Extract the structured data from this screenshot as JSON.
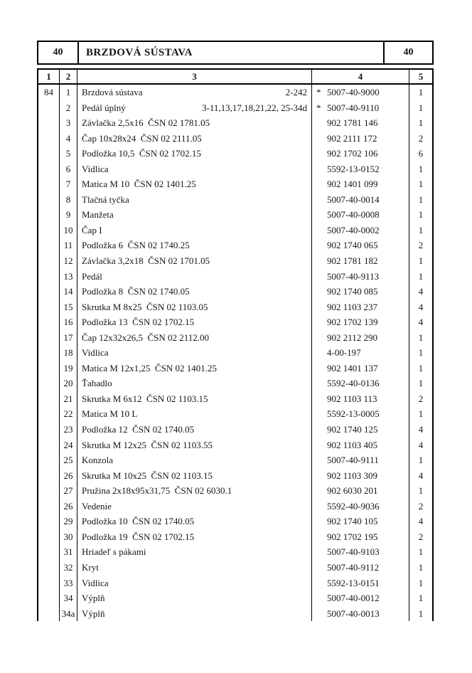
{
  "header": {
    "left_code": "40",
    "title": "BRZDOVÁ SÚSTAVA",
    "right_code": "40"
  },
  "columns": [
    "1",
    "2",
    "3",
    "4",
    "5"
  ],
  "group_ref": "84",
  "rows": [
    {
      "pos": "1",
      "name": "Brzdová sústava",
      "ref": "2-242",
      "star": "*",
      "number": "5007-40-9000",
      "qty": "1"
    },
    {
      "pos": "2",
      "name": "Pedál úplný",
      "ref": "3-11,13,17,18,21,22, 25-34d",
      "star": "*",
      "number": "5007-40-9110",
      "qty": "1"
    },
    {
      "pos": "3",
      "name": "Závlačka 2,5x16  ČSN 02 1781.05",
      "ref": "",
      "star": "",
      "number": "902 1781 146",
      "qty": "1"
    },
    {
      "pos": "4",
      "name": "Čap 10x28x24  ČSN 02 2111.05",
      "ref": "",
      "star": "",
      "number": "902 2111 172",
      "qty": "2"
    },
    {
      "pos": "5",
      "name": "Podložka 10,5  ČSN 02 1702.15",
      "ref": "",
      "star": "",
      "number": "902 1702 106",
      "qty": "6"
    },
    {
      "pos": "6",
      "name": "Vidlica",
      "ref": "",
      "star": "",
      "number": "5592-13-0152",
      "qty": "1"
    },
    {
      "pos": "7",
      "name": "Matica M 10  ČSN 02 1401.25",
      "ref": "",
      "star": "",
      "number": "902 1401 099",
      "qty": "1"
    },
    {
      "pos": "8",
      "name": "Tlačná tyčka",
      "ref": "",
      "star": "",
      "number": "5007-40-0014",
      "qty": "1"
    },
    {
      "pos": "9",
      "name": "Manžeta",
      "ref": "",
      "star": "",
      "number": "5007-40-0008",
      "qty": "1"
    },
    {
      "pos": "10",
      "name": "Čap I",
      "ref": "",
      "star": "",
      "number": "5007-40-0002",
      "qty": "1"
    },
    {
      "pos": "11",
      "name": "Podložka 6  ČSN 02 1740.25",
      "ref": "",
      "star": "",
      "number": "902 1740 065",
      "qty": "2"
    },
    {
      "pos": "12",
      "name": "Závlačka 3,2x18  ČSN 02 1701.05",
      "ref": "",
      "star": "",
      "number": "902 1781 182",
      "qty": "1"
    },
    {
      "pos": "13",
      "name": "Pedál",
      "ref": "",
      "star": "",
      "number": "5007-40-9113",
      "qty": "1"
    },
    {
      "pos": "14",
      "name": "Podložka 8  ČSN 02 1740.05",
      "ref": "",
      "star": "",
      "number": "902 1740 085",
      "qty": "4"
    },
    {
      "pos": "15",
      "name": "Skrutka M 8x25  ČSN 02 1103.05",
      "ref": "",
      "star": "",
      "number": "902 1103 237",
      "qty": "4"
    },
    {
      "pos": "16",
      "name": "Podložka 13  ČSN 02 1702.15",
      "ref": "",
      "star": "",
      "number": "902 1702 139",
      "qty": "4"
    },
    {
      "pos": "17",
      "name": "Čap 12x32x26,5  ČSN 02 2112.00",
      "ref": "",
      "star": "",
      "number": "902 2112 290",
      "qty": "1"
    },
    {
      "pos": "18",
      "name": "Vidlica",
      "ref": "",
      "star": "",
      "number": "4-00-197",
      "qty": "1"
    },
    {
      "pos": "19",
      "name": "Matica M 12x1,25  ČSN 02 1401.25",
      "ref": "",
      "star": "",
      "number": "902 1401 137",
      "qty": "1"
    },
    {
      "pos": "20",
      "name": "Ťahadlo",
      "ref": "",
      "star": "",
      "number": "5592-40-0136",
      "qty": "1"
    },
    {
      "pos": "21",
      "name": "Skrutka M 6x12  ČSN 02 1103.15",
      "ref": "",
      "star": "",
      "number": "902 1103 113",
      "qty": "2"
    },
    {
      "pos": "22",
      "name": "Matica M 10 L",
      "ref": "",
      "star": "",
      "number": "5592-13-0005",
      "qty": "1"
    },
    {
      "pos": "23",
      "name": "Podložka 12  ČSN 02 1740.05",
      "ref": "",
      "star": "",
      "number": "902 1740 125",
      "qty": "4"
    },
    {
      "pos": "24",
      "name": "Skrutka M 12x25  ČSN 02 1103.55",
      "ref": "",
      "star": "",
      "number": "902 1103 405",
      "qty": "4"
    },
    {
      "pos": "25",
      "name": "Konzola",
      "ref": "",
      "star": "",
      "number": "5007-40-9111",
      "qty": "1"
    },
    {
      "pos": "26",
      "name": "Skrutka M 10x25  ČSN 02 1103.15",
      "ref": "",
      "star": "",
      "number": "902 1103 309",
      "qty": "4"
    },
    {
      "pos": "27",
      "name": "Pružina 2x18x95x31,75  ČSN 02 6030.1",
      "ref": "",
      "star": "",
      "number": "902 6030 201",
      "qty": "1"
    },
    {
      "pos": "26",
      "name": "Vedenie",
      "ref": "",
      "star": "",
      "number": "5592-40-9036",
      "qty": "2"
    },
    {
      "pos": "29",
      "name": "Podložka 10  ČSN 02 1740.05",
      "ref": "",
      "star": "",
      "number": "902 1740 105",
      "qty": "4"
    },
    {
      "pos": "30",
      "name": "Podložka 19  ČSN 02 1702.15",
      "ref": "",
      "star": "",
      "number": "902 1702 195",
      "qty": "2"
    },
    {
      "pos": "31",
      "name": "Hriadeľ s pákami",
      "ref": "",
      "star": "",
      "number": "5007-40-9103",
      "qty": "1"
    },
    {
      "pos": "32",
      "name": "Kryt",
      "ref": "",
      "star": "",
      "number": "5007-40-9112",
      "qty": "1"
    },
    {
      "pos": "33",
      "name": "Vidlica",
      "ref": "",
      "star": "",
      "number": "5592-13-0151",
      "qty": "1"
    },
    {
      "pos": "34",
      "name": "Výplň",
      "ref": "",
      "star": "",
      "number": "5007-40-0012",
      "qty": "1"
    },
    {
      "pos": "34a",
      "name": "Výplň",
      "ref": "",
      "star": "",
      "number": "5007-40-0013",
      "qty": "1"
    }
  ]
}
